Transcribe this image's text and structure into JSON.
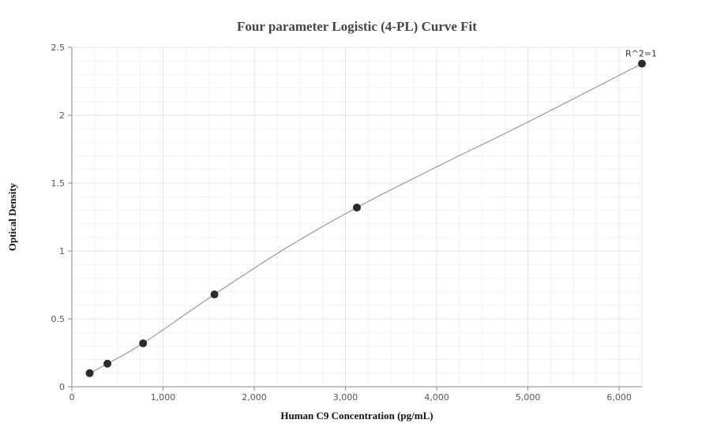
{
  "chart_data": {
    "type": "scatter",
    "title": "Four parameter Logistic (4-PL) Curve Fit",
    "xlabel": "Human C9 Concentration (pg/mL)",
    "ylabel": "Optical Density",
    "xlim": [
      0,
      6250
    ],
    "ylim": [
      0,
      2.5
    ],
    "xticks": [
      0,
      1000,
      2000,
      3000,
      4000,
      5000,
      6000
    ],
    "xtick_labels": [
      "0",
      "1,000",
      "2,000",
      "3,000",
      "4,000",
      "5,000",
      "6,000"
    ],
    "yticks": [
      0,
      0.5,
      1,
      1.5,
      2,
      2.5
    ],
    "ytick_labels": [
      "0",
      "0.5",
      "1",
      "1.5",
      "2",
      "2.5"
    ],
    "grid": true,
    "series": [
      {
        "x": [
          195,
          390,
          781,
          1563,
          3125,
          6250
        ],
        "y": [
          0.1,
          0.17,
          0.32,
          0.68,
          1.32,
          2.38
        ],
        "marker_color": "#2b2b2b"
      }
    ],
    "fit_curve": {
      "x": [
        195,
        390,
        781,
        1563,
        2344,
        3125,
        4000,
        5000,
        6250
      ],
      "y": [
        0.1,
        0.17,
        0.32,
        0.68,
        1.02,
        1.32,
        1.62,
        1.95,
        2.38
      ],
      "line_color": "#888888"
    },
    "annotation": "R^2=1"
  }
}
